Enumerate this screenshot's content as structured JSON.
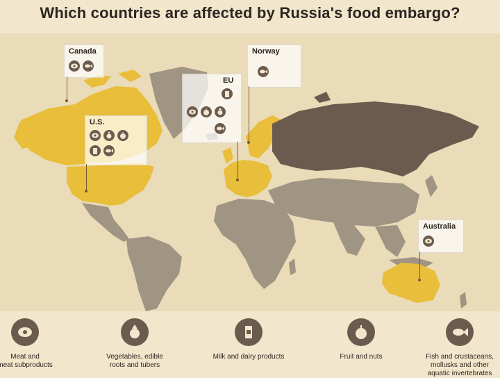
{
  "title": "Which countries are affected by Russia's food embargo?",
  "colors": {
    "background": "#f2e6cc",
    "ocean": "#eadbb9",
    "embargo_country": "#e8be3a",
    "russia": "#6b5b4e",
    "other_country": "#a09482",
    "icon": "#6b5b4e"
  },
  "callouts": [
    {
      "label": "Canada",
      "icons": [
        "meat-icon",
        "fish-icon"
      ]
    },
    {
      "label": "Norway",
      "icons": [
        "fish-icon"
      ]
    },
    {
      "label": "EU",
      "icons": [
        "milk-icon",
        "meat-icon",
        "fruit-icon",
        "vegetables-icon",
        "fish-icon"
      ]
    },
    {
      "label": "U.S.",
      "icons": [
        "meat-icon",
        "vegetables-icon",
        "fruit-icon",
        "milk-icon",
        "fish-icon"
      ]
    },
    {
      "label": "Australia",
      "icons": [
        "meat-icon"
      ]
    }
  ],
  "legend": [
    {
      "icon": "meat-icon",
      "text": "Meat and\nmeat subproducts"
    },
    {
      "icon": "vegetables-icon",
      "text": "Vegetables, edible\nroots and tubers"
    },
    {
      "icon": "milk-icon",
      "text": "Milk and dairy products"
    },
    {
      "icon": "fruit-icon",
      "text": "Fruit and nuts"
    },
    {
      "icon": "fish-icon",
      "text": "Fish and crustaceans,\nmollusks and other\naquatic invertebrates"
    }
  ]
}
